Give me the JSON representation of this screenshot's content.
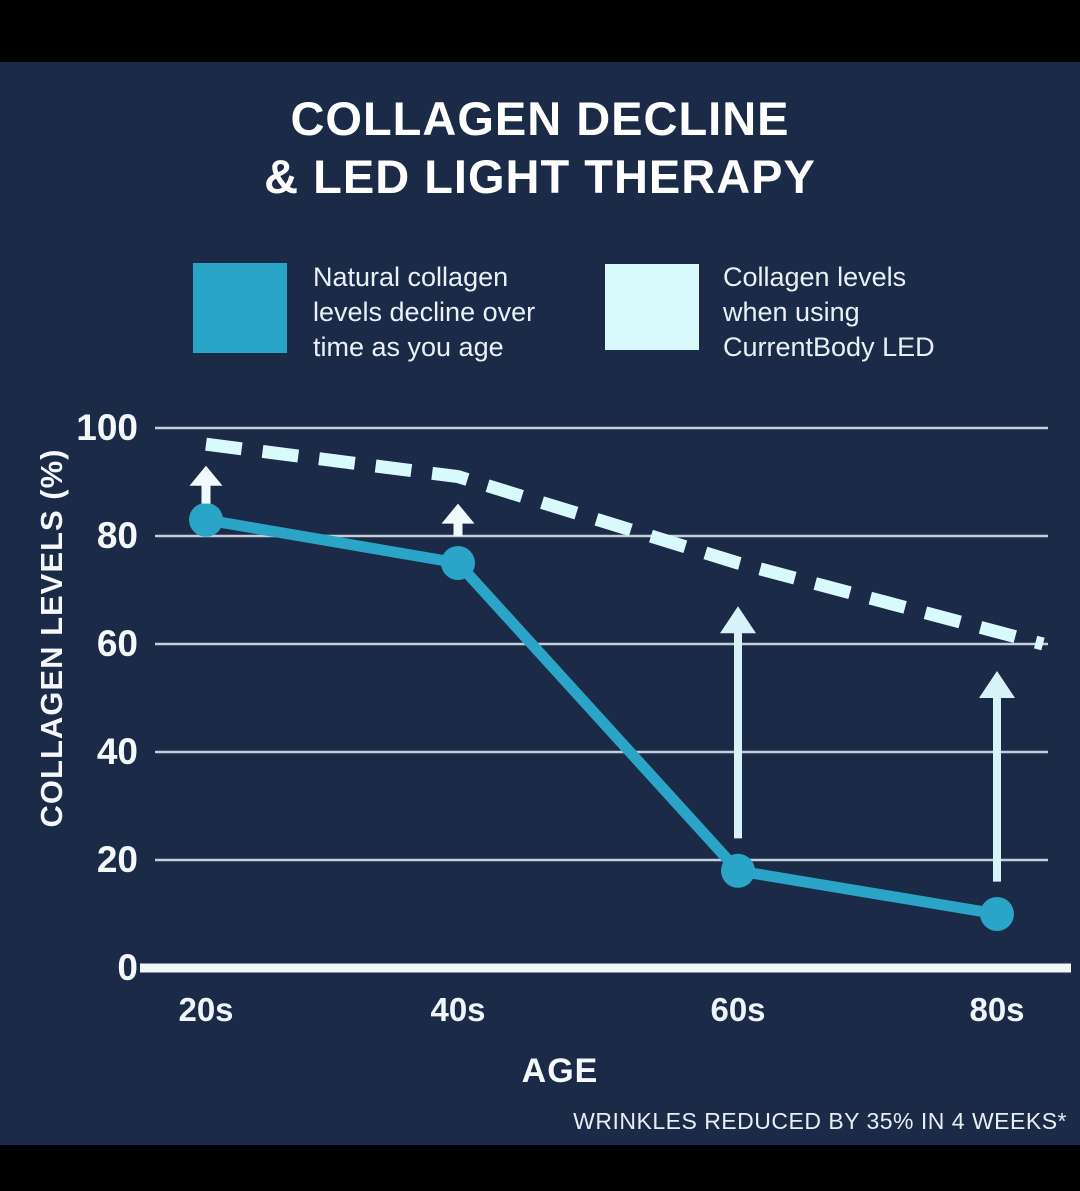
{
  "title": {
    "line1": "COLLAGEN DECLINE",
    "line2": "& LED LIGHT THERAPY"
  },
  "legend": {
    "items": [
      {
        "label": "Natural collagen levels decline over time as you age",
        "lines": [
          "Natural collagen",
          "levels decline over",
          "time as you age"
        ],
        "color": "#2aa5c7"
      },
      {
        "label": "Collagen levels when using CurrentBody LED",
        "lines": [
          "Collagen levels",
          "when using",
          "CurrentBody LED"
        ],
        "color": "#d9fafd"
      }
    ]
  },
  "footnote": {
    "text": "WRINKLES REDUCED BY 35% IN 4 WEEKS*"
  },
  "colors": {
    "background": "#000000",
    "card": "#1b2a46",
    "natural_line": "#2aa5c7",
    "led_line": "#d9fafd",
    "grid_line": "#c6cfd9",
    "axis_line": "#f3f7fa",
    "text": "#ffffff",
    "arrow_small": "#f0f9fb",
    "arrow_large": "#d7f3f8"
  },
  "chart_data": {
    "type": "line",
    "title": "COLLAGEN DECLINE & LED LIGHT THERAPY",
    "categories": [
      "20s",
      "40s",
      "60s",
      "80s"
    ],
    "series": [
      {
        "name": "Natural collagen levels decline over time as you age",
        "style": "solid",
        "marker": "circle",
        "color": "#2aa5c7",
        "values": [
          83,
          75,
          18,
          10
        ]
      },
      {
        "name": "Collagen levels when using CurrentBody LED",
        "style": "dashed",
        "marker": "none",
        "color": "#d9fafd",
        "values": [
          97,
          91,
          75,
          60
        ],
        "note": "dashed line extends slightly past the 80s category to the right edge of the grid"
      }
    ],
    "xlabel": "AGE",
    "ylabel": "COLLAGEN LEVELS (%)",
    "ylim": [
      0,
      100
    ],
    "yticks": [
      100,
      80,
      60,
      40,
      20,
      0
    ],
    "grid": "horizontal",
    "legend_position": "top",
    "annotations": {
      "arrows": [
        {
          "category": "20s",
          "from": 86,
          "to": 93,
          "size": "small"
        },
        {
          "category": "40s",
          "from": 80,
          "to": 86,
          "size": "small"
        },
        {
          "category": "60s",
          "from": 24,
          "to": 67,
          "size": "large"
        },
        {
          "category": "80s",
          "from": 16,
          "to": 55,
          "size": "large"
        }
      ]
    }
  }
}
